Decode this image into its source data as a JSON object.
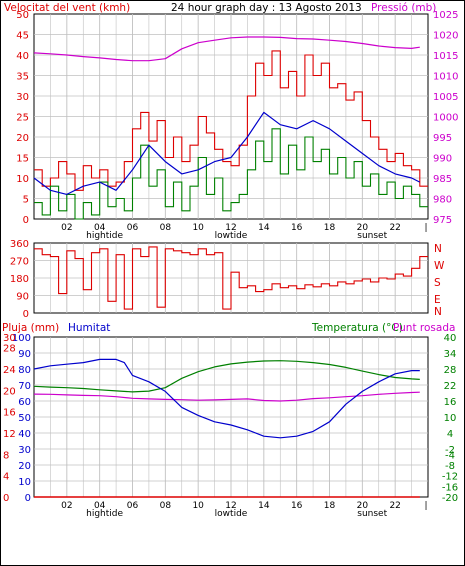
{
  "colors": {
    "wind_speed": "#dd0000",
    "wind_avg": "#0000cc",
    "wind_low": "#008000",
    "pressure": "#cc00cc",
    "rain": "#dd0000",
    "humidity": "#0000cc",
    "temperature": "#008000",
    "dewpoint": "#cc00cc",
    "grid": "#c0c0c0",
    "axis": "#000000"
  },
  "top": {
    "title": "24 hour graph day : 13 Agosto 2013",
    "left_label": "Velocitat del vent (kmh)",
    "right_label": "Pressió (mb)"
  },
  "middle": {
    "dir_letters": [
      "N",
      "W",
      "S",
      "E",
      "N"
    ]
  },
  "bottom": {
    "rain_label": "Pluja (mm)",
    "humidity_label": "Humitat",
    "temp_label": "Temperatura (°C)",
    "dew_label": "Punt rosada"
  },
  "x_axis": {
    "hour_ticks": [
      "02",
      "04",
      "06",
      "08",
      "10",
      "12",
      "14",
      "16",
      "18",
      "20",
      "22"
    ],
    "events": [
      {
        "label": "hightide",
        "hour": 4.3
      },
      {
        "label": "lowtide",
        "hour": 12.0
      },
      {
        "label": "sunset",
        "hour": 20.6
      }
    ]
  },
  "chart_data": [
    {
      "type": "line",
      "title": "24 hour graph day : 13 Agosto 2013",
      "x_unit": "hour of day",
      "y_left": {
        "label": "Velocitat del vent (kmh)",
        "ticks": [
          0,
          5,
          10,
          15,
          20,
          25,
          30,
          35,
          40,
          45,
          50
        ],
        "range": [
          0,
          50
        ]
      },
      "y_right": {
        "label": "Pressió (mb)",
        "ticks": [
          975,
          980,
          985,
          990,
          995,
          1000,
          1005,
          1010,
          1015,
          1020,
          1025
        ],
        "range": [
          975,
          1025
        ]
      },
      "series": [
        {
          "key": "wind_speed",
          "axis": "left",
          "x": [
            0,
            0.5,
            1,
            1.5,
            2,
            2.5,
            3,
            3.5,
            4,
            4.5,
            5,
            5.5,
            6,
            6.5,
            7,
            7.5,
            8,
            8.5,
            9,
            9.5,
            10,
            10.5,
            11,
            11.5,
            12,
            12.5,
            13,
            13.5,
            14,
            14.5,
            15,
            15.5,
            16,
            16.5,
            17,
            17.5,
            18,
            18.5,
            19,
            19.5,
            20,
            20.5,
            21,
            21.5,
            22,
            22.5,
            23,
            23.5
          ],
          "y": [
            12,
            8,
            10,
            14,
            11,
            7,
            13,
            10,
            12,
            8,
            9,
            14,
            22,
            26,
            19,
            24,
            15,
            20,
            14,
            18,
            25,
            21,
            17,
            14,
            13,
            18,
            30,
            38,
            35,
            41,
            32,
            36,
            30,
            40,
            35,
            38,
            32,
            33,
            29,
            31,
            24,
            20,
            17,
            14,
            16,
            13,
            12,
            8
          ]
        },
        {
          "key": "wind_avg",
          "axis": "left",
          "x": [
            0,
            1,
            2,
            3,
            4,
            5,
            6,
            7,
            8,
            9,
            10,
            11,
            12,
            13,
            14,
            15,
            16,
            17,
            18,
            19,
            20,
            21,
            22,
            23,
            23.5
          ],
          "y": [
            10,
            7,
            6,
            8,
            9,
            7,
            12,
            18,
            14,
            11,
            12,
            14,
            15,
            20,
            26,
            23,
            22,
            24,
            22,
            19,
            16,
            13,
            11,
            10,
            9
          ]
        },
        {
          "key": "wind_low",
          "axis": "left",
          "x": [
            0,
            0.5,
            1,
            1.5,
            2,
            2.5,
            3,
            3.5,
            4,
            4.5,
            5,
            5.5,
            6,
            6.5,
            7,
            7.5,
            8,
            8.5,
            9,
            9.5,
            10,
            10.5,
            11,
            11.5,
            12,
            12.5,
            13,
            13.5,
            14,
            14.5,
            15,
            15.5,
            16,
            16.5,
            17,
            17.5,
            18,
            18.5,
            19,
            19.5,
            20,
            20.5,
            21,
            21.5,
            22,
            22.5,
            23,
            23.5
          ],
          "y": [
            4,
            1,
            8,
            2,
            6,
            0,
            4,
            1,
            9,
            3,
            5,
            2,
            10,
            18,
            8,
            12,
            3,
            9,
            2,
            8,
            15,
            6,
            10,
            2,
            4,
            6,
            12,
            19,
            14,
            22,
            11,
            18,
            12,
            20,
            14,
            17,
            11,
            15,
            10,
            14,
            8,
            11,
            6,
            9,
            5,
            8,
            6,
            3
          ]
        },
        {
          "key": "pressure",
          "axis": "right",
          "x": [
            0,
            1,
            2,
            3,
            4,
            5,
            6,
            7,
            8,
            9,
            10,
            11,
            12,
            13,
            14,
            15,
            16,
            17,
            18,
            19,
            20,
            21,
            22,
            23,
            23.5
          ],
          "y": [
            1015.5,
            1015.3,
            1015.0,
            1014.6,
            1014.3,
            1013.9,
            1013.6,
            1013.6,
            1014.1,
            1016.5,
            1018.0,
            1018.6,
            1019.2,
            1019.4,
            1019.4,
            1019.3,
            1019.0,
            1018.9,
            1018.6,
            1018.3,
            1017.8,
            1017.2,
            1016.8,
            1016.6,
            1016.9
          ]
        }
      ]
    },
    {
      "type": "scatter",
      "title": "",
      "x_unit": "hour of day",
      "y": {
        "ticks": [
          0,
          90,
          180,
          270,
          360
        ],
        "range": [
          0,
          360
        ],
        "direction_labels": [
          "N",
          "W",
          "S",
          "E",
          "N"
        ]
      },
      "series": [
        {
          "key": "wind_direction",
          "x": [
            0,
            0.5,
            1,
            1.5,
            2,
            2.5,
            3,
            3.5,
            4,
            4.5,
            5,
            5.5,
            6,
            6.5,
            7,
            7.5,
            8,
            8.5,
            9,
            9.5,
            10,
            10.5,
            11,
            11.5,
            12,
            12.5,
            13,
            13.5,
            14,
            14.5,
            15,
            15.5,
            16,
            16.5,
            17,
            17.5,
            18,
            18.5,
            19,
            19.5,
            20,
            20.5,
            21,
            21.5,
            22,
            22.5,
            23,
            23.5
          ],
          "y": [
            330,
            300,
            290,
            100,
            320,
            280,
            120,
            310,
            330,
            60,
            300,
            20,
            330,
            290,
            340,
            30,
            330,
            320,
            310,
            300,
            330,
            300,
            310,
            20,
            210,
            130,
            140,
            110,
            120,
            150,
            130,
            140,
            125,
            145,
            135,
            150,
            140,
            160,
            150,
            165,
            175,
            160,
            180,
            175,
            200,
            190,
            230,
            290
          ]
        }
      ]
    },
    {
      "type": "line",
      "title": "",
      "x_unit": "hour of day",
      "y_left": {
        "labels": [
          "Pluja (mm)",
          "Humitat"
        ],
        "rain_ticks": [
          0,
          2,
          4,
          6,
          8,
          10,
          12,
          14,
          16,
          18,
          20,
          22,
          24,
          26,
          28,
          30
        ],
        "humidity_ticks": [
          0,
          10,
          20,
          30,
          40,
          50,
          60,
          70,
          80,
          90,
          100
        ],
        "rain_range": [
          0,
          30
        ],
        "humidity_range": [
          0,
          100
        ]
      },
      "y_right": {
        "labels": [
          "Temperatura (°C)",
          "Punt rosada"
        ],
        "ticks": [
          -20,
          -16,
          -12,
          -8,
          -4,
          -2,
          4,
          10,
          16,
          22,
          28,
          34,
          40
        ],
        "range": [
          -20,
          40
        ]
      },
      "series": [
        {
          "key": "rain",
          "axis": "rain",
          "x": [
            0,
            23.5
          ],
          "y": [
            0,
            0
          ]
        },
        {
          "key": "humidity",
          "axis": "humidity",
          "x": [
            0,
            1,
            2,
            3,
            4,
            5,
            5.5,
            6,
            7,
            8,
            9,
            10,
            11,
            12,
            13,
            14,
            15,
            16,
            17,
            18,
            19,
            20,
            21,
            22,
            23,
            23.5
          ],
          "y": [
            80,
            82,
            83,
            84,
            86,
            86,
            84,
            76,
            72,
            66,
            56,
            51,
            47,
            45,
            42,
            38,
            37,
            38,
            41,
            47,
            58,
            66,
            72,
            77,
            79,
            79
          ]
        },
        {
          "key": "temperature",
          "axis": "temp",
          "x": [
            0,
            1,
            2,
            3,
            4,
            5,
            6,
            7,
            8,
            9,
            10,
            11,
            12,
            13,
            14,
            15,
            16,
            17,
            18,
            19,
            20,
            21,
            22,
            23,
            23.5
          ],
          "y": [
            21.5,
            21.2,
            21.0,
            20.7,
            20.2,
            19.8,
            19.4,
            19.7,
            21.0,
            24.5,
            27.0,
            28.8,
            29.9,
            30.6,
            31.0,
            31.1,
            30.9,
            30.4,
            29.7,
            28.6,
            27.2,
            25.9,
            24.8,
            24.3,
            24.1
          ]
        },
        {
          "key": "dewpoint",
          "axis": "temp",
          "x": [
            0,
            1,
            2,
            3,
            4,
            5,
            6,
            7,
            8,
            9,
            10,
            11,
            12,
            13,
            14,
            15,
            16,
            17,
            18,
            19,
            20,
            21,
            22,
            23,
            23.5
          ],
          "y": [
            18.6,
            18.5,
            18.3,
            18.1,
            18.0,
            17.6,
            17.0,
            16.8,
            16.6,
            16.5,
            16.3,
            16.4,
            16.6,
            16.8,
            16.2,
            16.0,
            16.3,
            16.9,
            17.2,
            17.6,
            18.0,
            18.5,
            18.9,
            19.2,
            19.3
          ]
        }
      ]
    }
  ]
}
